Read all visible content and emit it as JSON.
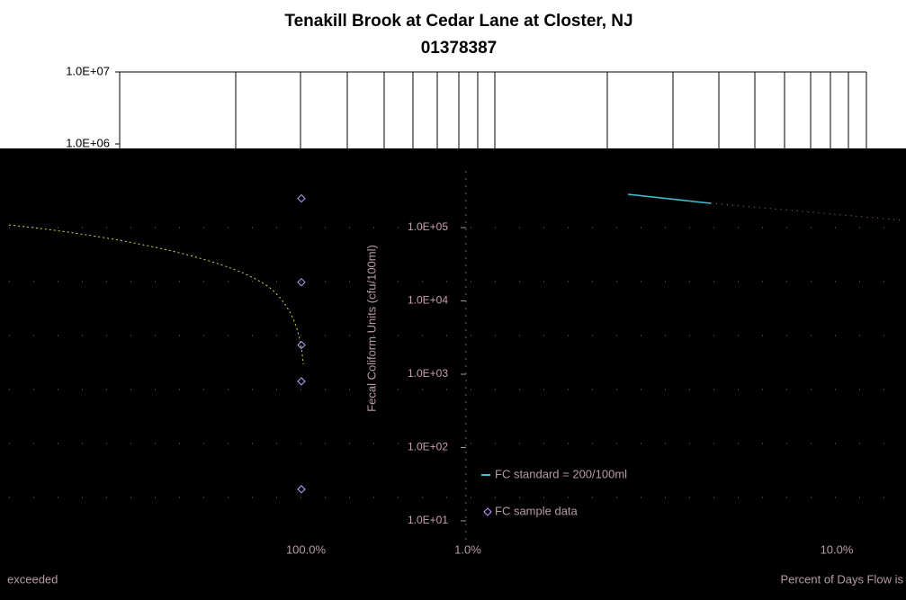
{
  "chart_data": {
    "type": "scatter",
    "title": "Tenakill Brook at Cedar Lane at Closter, NJ",
    "subtitle": "01378387",
    "y_label": "Fecal Coliform Units (cfu/100ml)",
    "x_label_left": "exceeded",
    "x_label_right": "Percent of Days Flow is",
    "x_tick_labels": [
      "100.0%",
      "1.0%",
      "10.0%"
    ],
    "log_y": true,
    "ylim": [
      10,
      10000000
    ],
    "yticks": [
      {
        "value": 10000000,
        "label": "1.0E+07"
      },
      {
        "value": 1000000,
        "label": "1.0E+06"
      },
      {
        "value": 100000,
        "label": "1.0E+05"
      },
      {
        "value": 10000,
        "label": "1.0E+04"
      },
      {
        "value": 1000,
        "label": "1.0E+03"
      },
      {
        "value": 100,
        "label": "1.0E+02"
      },
      {
        "value": 10,
        "label": "1.0E+01"
      }
    ],
    "series": [
      {
        "name": "FC standard = 200/100ml",
        "color": "#40c0d0"
      },
      {
        "name": "FC sample data",
        "color": "#c0a0ff",
        "values": [
          250000,
          18000,
          2500,
          800,
          27
        ]
      }
    ]
  }
}
